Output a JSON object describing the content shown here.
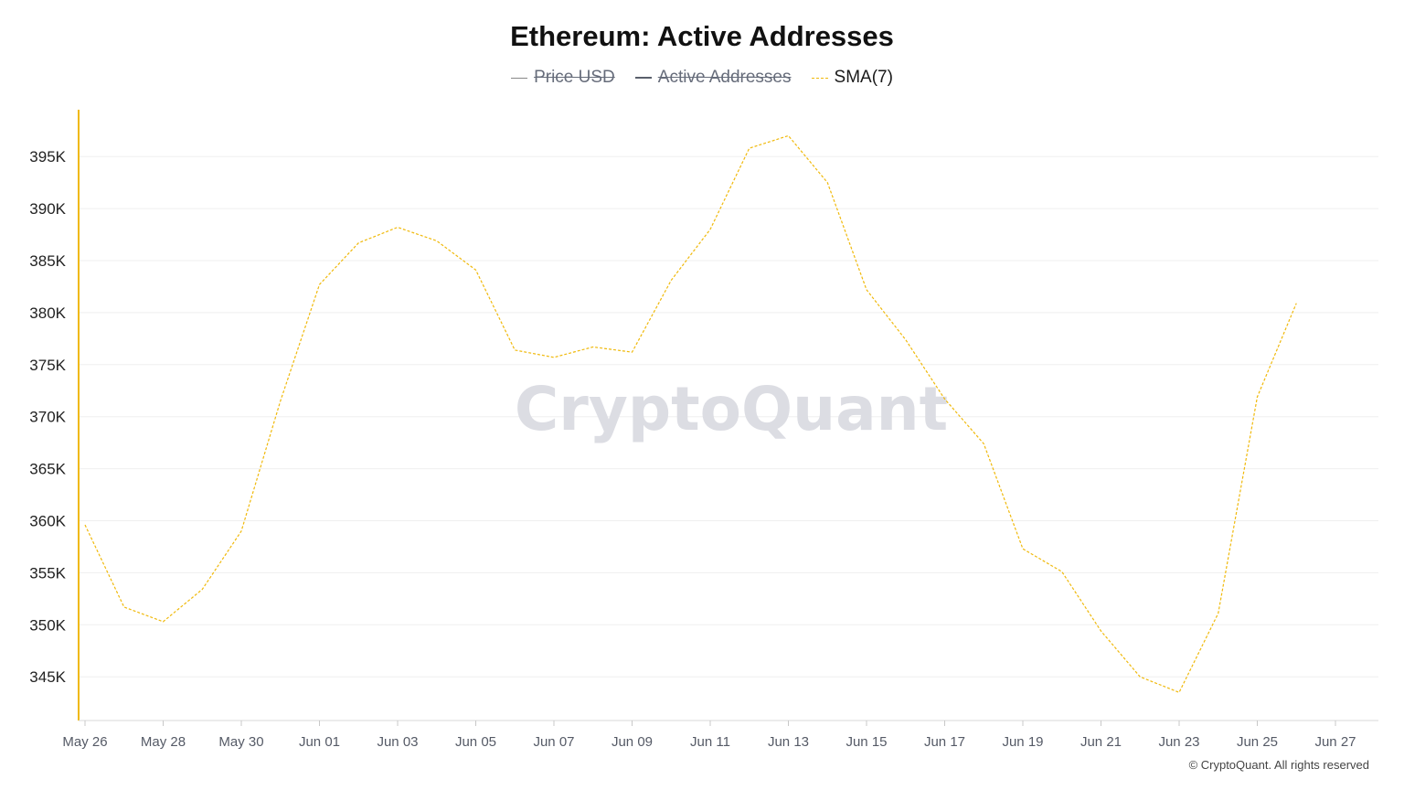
{
  "title": "Ethereum: Active Addresses",
  "legend": [
    {
      "label": "Price USD",
      "state": "disabled",
      "color": "#9aa0a6"
    },
    {
      "label": "Active Addresses",
      "state": "disabled",
      "color": "#5a5f6b"
    },
    {
      "label": "SMA(7)",
      "state": "active",
      "color": "#f0b90b"
    }
  ],
  "watermark": "CryptoQuant",
  "copyright": "© CryptoQuant. All rights reserved",
  "chart_data": {
    "type": "line",
    "title": "Ethereum: Active Addresses",
    "x_tick_labels": [
      "May 26",
      "May 28",
      "May 30",
      "Jun 01",
      "Jun 03",
      "Jun 05",
      "Jun 07",
      "Jun 09",
      "Jun 11",
      "Jun 13",
      "Jun 15",
      "Jun 17",
      "Jun 19",
      "Jun 21",
      "Jun 23",
      "Jun 25",
      "Jun 27"
    ],
    "y_tick_labels": [
      "395K",
      "390K",
      "385K",
      "380K",
      "375K",
      "370K",
      "365K",
      "360K",
      "355K",
      "350K",
      "345K"
    ],
    "y_ticks": [
      395000,
      390000,
      385000,
      380000,
      375000,
      370000,
      365000,
      360000,
      355000,
      350000,
      345000
    ],
    "ylim": [
      340800,
      399500
    ],
    "grid": true,
    "legend_position": "top-center",
    "series": [
      {
        "name": "SMA(7)",
        "color": "#f0b90b",
        "style": "dashed",
        "x": [
          "May 26",
          "May 27",
          "May 28",
          "May 29",
          "May 30",
          "May 31",
          "Jun 01",
          "Jun 02",
          "Jun 03",
          "Jun 04",
          "Jun 05",
          "Jun 06",
          "Jun 07",
          "Jun 08",
          "Jun 09",
          "Jun 10",
          "Jun 11",
          "Jun 12",
          "Jun 13",
          "Jun 14",
          "Jun 15",
          "Jun 16",
          "Jun 17",
          "Jun 18",
          "Jun 19",
          "Jun 20",
          "Jun 21",
          "Jun 22",
          "Jun 23",
          "Jun 24",
          "Jun 25",
          "Jun 26"
        ],
        "values": [
          359600,
          351700,
          350300,
          353400,
          359000,
          371500,
          382700,
          386700,
          388200,
          386900,
          384100,
          376400,
          375700,
          376700,
          376200,
          383100,
          388000,
          395800,
          397000,
          392500,
          382200,
          377400,
          371700,
          367400,
          357300,
          355100,
          349400,
          345000,
          343500,
          351100,
          371900,
          380900
        ]
      }
    ]
  }
}
